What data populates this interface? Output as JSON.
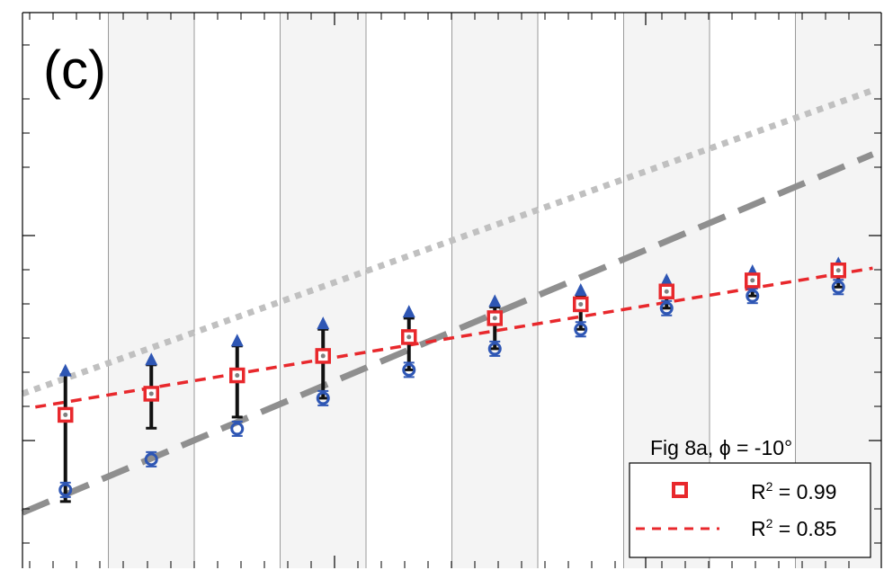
{
  "panel_label": "(c)",
  "legend": {
    "title": "Fig 8a, ϕ = -10°",
    "entries": [
      {
        "marker": "square",
        "label_prefix": "R",
        "label_sup": "2",
        "label_suffix": " = 0.99"
      },
      {
        "marker": "dash",
        "label_prefix": "R",
        "label_sup": "2",
        "label_suffix": " = 0.85"
      }
    ]
  },
  "colors": {
    "square": "#e8282c",
    "square_fill": "#ffffff",
    "red_fit": "#e8282c",
    "triangle": "#2e56b4",
    "circle": "#2e56b4",
    "errorbar": "#111111",
    "gray_dotted": "#c0c0c0",
    "gray_dashed": "#8f8f8f",
    "band": "#f4f4f4",
    "band_border": "#9a9a9a"
  },
  "chart_data": {
    "type": "scatter",
    "xlim": [
      0,
      10
    ],
    "ylim": [
      0,
      10
    ],
    "note_axes": "tick labels not visible; values in normalized axis units",
    "x": [
      0.5,
      1.5,
      2.5,
      3.5,
      4.5,
      5.5,
      6.5,
      7.5,
      8.5,
      9.5
    ],
    "series": [
      {
        "name": "",
        "marker": "square",
        "values": [
          2.76,
          3.14,
          3.47,
          3.82,
          4.16,
          4.5,
          4.75,
          4.98,
          5.18,
          5.36
        ]
      },
      {
        "name": "",
        "marker": "triangle",
        "values": [
          3.55,
          3.75,
          4.09,
          4.4,
          4.61,
          4.8,
          5.0,
          5.18,
          5.34,
          5.48
        ]
      },
      {
        "name": "",
        "marker": "circle",
        "values": [
          1.41,
          1.96,
          2.51,
          3.06,
          3.57,
          3.95,
          4.3,
          4.68,
          4.9,
          5.06
        ]
      }
    ],
    "errorbars": [
      {
        "x": 0.5,
        "low": 1.2,
        "high": 3.48
      },
      {
        "x": 1.5,
        "low": 2.52,
        "high": 3.66
      },
      {
        "x": 2.5,
        "low": 2.72,
        "high": 4.0
      },
      {
        "x": 3.5,
        "low": 3.06,
        "high": 4.3
      },
      {
        "x": 4.5,
        "low": 3.57,
        "high": 4.5
      },
      {
        "x": 5.5,
        "low": 3.95,
        "high": 4.7
      },
      {
        "x": 6.5,
        "low": 4.3,
        "high": 4.9
      },
      {
        "x": 7.5,
        "low": 4.68,
        "high": 5.09
      },
      {
        "x": 8.5,
        "low": 4.9,
        "high": 5.26
      },
      {
        "x": 9.5,
        "low": 5.06,
        "high": 5.4
      }
    ],
    "lines": [
      {
        "style": "dashed-red",
        "x": [
          0.15,
          9.9
        ],
        "y": [
          2.9,
          5.4
        ]
      },
      {
        "style": "dotted-gray",
        "x": [
          0.0,
          9.9
        ],
        "y": [
          3.14,
          8.6
        ]
      },
      {
        "style": "dashed-gray",
        "x": [
          0.0,
          9.9
        ],
        "y": [
          1.0,
          7.45
        ]
      }
    ],
    "bands": [
      [
        1,
        2
      ],
      [
        3,
        4
      ],
      [
        5,
        6
      ],
      [
        7,
        8
      ],
      [
        9,
        10
      ]
    ],
    "grid": false,
    "legend_position": "bottom-right"
  }
}
